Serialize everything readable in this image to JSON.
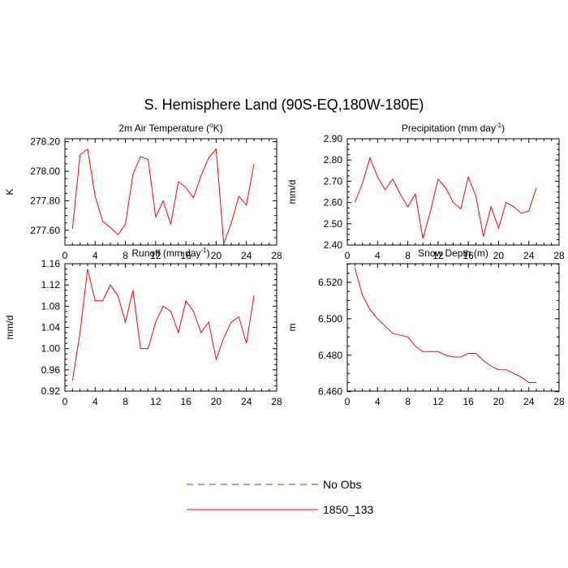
{
  "title": "S. Hemisphere Land (90S-EQ,180W-180E)",
  "colors": {
    "model": "#ff0000",
    "obs": "#3232ff",
    "axis": "#000000"
  },
  "legend": [
    {
      "label": "No Obs",
      "style": "dashed",
      "color": "#3232ff"
    },
    {
      "label": "1850_133",
      "style": "solid",
      "color": "#ff0000"
    }
  ],
  "chart_data": [
    {
      "type": "line",
      "title": "2m Air Temperature (°K)",
      "title_parts": {
        "pre": "2m Air Temperature (",
        "sup": "o",
        "post": "K)"
      },
      "ylabel": "K",
      "xlabel": "",
      "xlim": [
        0,
        28
      ],
      "xticks": [
        0,
        4,
        8,
        12,
        16,
        20,
        24,
        28
      ],
      "xtick_labels": [
        "0",
        "4",
        "8",
        "12",
        "16",
        "20",
        "24",
        "28"
      ],
      "ylim": [
        277.5,
        278.22
      ],
      "yticks": [
        277.6,
        277.8,
        278.0,
        278.2
      ],
      "ytick_labels": [
        "277.60",
        "277.80",
        "278.00",
        "278.20"
      ],
      "series": [
        {
          "name": "1850_133",
          "x": [
            1,
            2,
            3,
            4,
            5,
            6,
            7,
            8,
            9,
            10,
            11,
            12,
            13,
            14,
            15,
            16,
            17,
            18,
            19,
            20,
            21,
            22,
            23,
            24,
            25
          ],
          "values": [
            277.61,
            278.11,
            278.15,
            277.83,
            277.66,
            277.62,
            277.57,
            277.64,
            277.98,
            278.1,
            278.08,
            277.69,
            277.8,
            277.64,
            277.93,
            277.89,
            277.82,
            277.97,
            278.09,
            278.15,
            277.51,
            277.65,
            277.83,
            277.77,
            278.05
          ]
        }
      ]
    },
    {
      "type": "line",
      "title": "Precipitation (mm day-1)",
      "title_parts": {
        "pre": "Precipitation (mm day",
        "sup": "-1",
        "post": ")"
      },
      "ylabel": "mm/d",
      "xlabel": "",
      "xlim": [
        0,
        28
      ],
      "xticks": [
        0,
        4,
        8,
        12,
        16,
        20,
        24,
        28
      ],
      "xtick_labels": [
        "0",
        "4",
        "8",
        "12",
        "16",
        "20",
        "24",
        "28"
      ],
      "ylim": [
        2.4,
        2.9
      ],
      "yticks": [
        2.4,
        2.5,
        2.6,
        2.7,
        2.8,
        2.9
      ],
      "ytick_labels": [
        "2.40",
        "2.50",
        "2.60",
        "2.70",
        "2.80",
        "2.90"
      ],
      "series": [
        {
          "name": "1850_133",
          "x": [
            1,
            2,
            3,
            4,
            5,
            6,
            7,
            8,
            9,
            10,
            11,
            12,
            13,
            14,
            15,
            16,
            17,
            18,
            19,
            20,
            21,
            22,
            23,
            24,
            25
          ],
          "values": [
            2.6,
            2.69,
            2.81,
            2.72,
            2.66,
            2.71,
            2.64,
            2.58,
            2.64,
            2.43,
            2.56,
            2.71,
            2.67,
            2.6,
            2.57,
            2.72,
            2.63,
            2.44,
            2.58,
            2.48,
            2.6,
            2.58,
            2.55,
            2.56,
            2.67
          ]
        }
      ]
    },
    {
      "type": "line",
      "title": "Runoff (mm day-1)",
      "title_parts": {
        "pre": "Runoff (mm day",
        "sup": "-1",
        "post": ")"
      },
      "ylabel": "mm/d",
      "xlabel": "",
      "xlim": [
        0,
        28
      ],
      "xticks": [
        0,
        4,
        8,
        12,
        16,
        20,
        24,
        28
      ],
      "xtick_labels": [
        "0",
        "4",
        "8",
        "12",
        "16",
        "20",
        "24",
        "28"
      ],
      "ylim": [
        0.92,
        1.16
      ],
      "yticks": [
        0.92,
        0.96,
        1.0,
        1.04,
        1.08,
        1.12,
        1.16
      ],
      "ytick_labels": [
        "0.92",
        "0.96",
        "1.00",
        "1.04",
        "1.08",
        "1.12",
        "1.16"
      ],
      "series": [
        {
          "name": "1850_133",
          "x": [
            1,
            2,
            3,
            4,
            5,
            6,
            7,
            8,
            9,
            10,
            11,
            12,
            13,
            14,
            15,
            16,
            17,
            18,
            19,
            20,
            21,
            22,
            23,
            24,
            25
          ],
          "values": [
            0.94,
            1.03,
            1.15,
            1.09,
            1.09,
            1.12,
            1.1,
            1.05,
            1.11,
            1.0,
            1.0,
            1.05,
            1.08,
            1.07,
            1.03,
            1.09,
            1.07,
            1.03,
            1.05,
            0.98,
            1.02,
            1.05,
            1.06,
            1.01,
            1.1
          ]
        }
      ]
    },
    {
      "type": "line",
      "title": "Snow Depth (m)",
      "title_parts": {
        "pre": "Snow Depth (m)",
        "sup": "",
        "post": ""
      },
      "ylabel": "m",
      "xlabel": "",
      "xlim": [
        0,
        28
      ],
      "xticks": [
        0,
        4,
        8,
        12,
        16,
        20,
        24,
        28
      ],
      "xtick_labels": [
        "0",
        "4",
        "8",
        "12",
        "16",
        "20",
        "24",
        "28"
      ],
      "ylim": [
        6.4603,
        6.5302
      ],
      "yticks": [
        6.46,
        6.48,
        6.5,
        6.52
      ],
      "ytick_labels": [
        "6.460",
        "6.480",
        "6.500",
        "6.520"
      ],
      "series": [
        {
          "name": "1850_133",
          "x": [
            1,
            2,
            3,
            4,
            5,
            6,
            7,
            8,
            9,
            10,
            11,
            12,
            13,
            14,
            15,
            16,
            17,
            18,
            19,
            20,
            21,
            22,
            23,
            24,
            25
          ],
          "values": [
            6.528,
            6.513,
            6.505,
            6.5,
            6.496,
            6.492,
            6.491,
            6.49,
            6.485,
            6.482,
            6.482,
            6.482,
            6.48,
            6.479,
            6.479,
            6.481,
            6.481,
            6.477,
            6.474,
            6.472,
            6.472,
            6.47,
            6.468,
            6.465,
            6.465
          ]
        }
      ]
    }
  ]
}
